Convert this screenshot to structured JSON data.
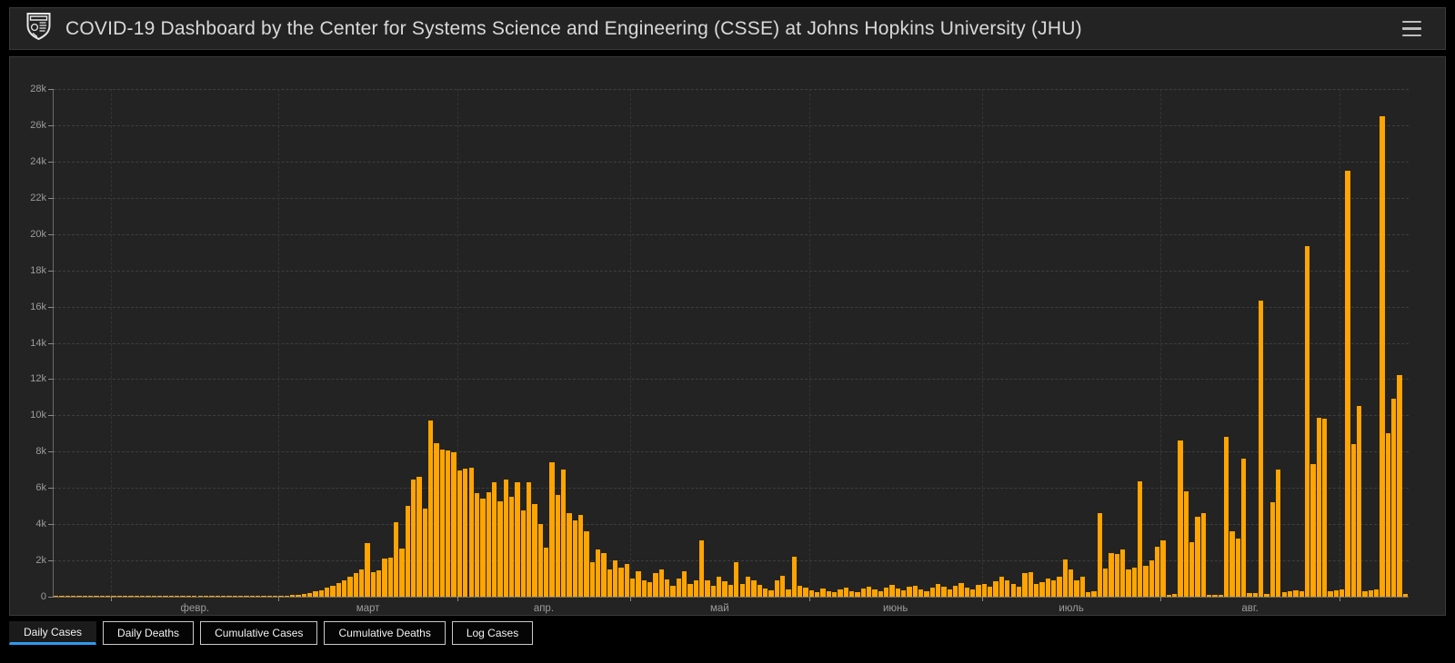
{
  "header": {
    "title": "COVID-19 Dashboard by the Center for Systems Science and Engineering (CSSE) at Johns Hopkins University (JHU)"
  },
  "colors": {
    "bar": "#ffa400",
    "tab_active_underline": "#2e9bf0",
    "panel_bg": "#232323",
    "page_bg": "#000000",
    "axis_text": "#9c9c9c"
  },
  "tabs": [
    {
      "label": "Daily Cases",
      "active": true
    },
    {
      "label": "Daily Deaths",
      "active": false
    },
    {
      "label": "Cumulative Cases",
      "active": false
    },
    {
      "label": "Cumulative Deaths",
      "active": false
    },
    {
      "label": "Log Cases",
      "active": false
    }
  ],
  "chart_data": {
    "type": "bar",
    "series_name": "Daily Cases",
    "ylim": [
      0,
      28000
    ],
    "y_tick_labels": [
      "0",
      "2k",
      "4k",
      "6k",
      "8k",
      "10k",
      "12k",
      "14k",
      "16k",
      "18k",
      "20k",
      "22k",
      "24k",
      "26k",
      "28k"
    ],
    "grid": "dashed",
    "total_days": 235,
    "months": [
      {
        "label": "февр.",
        "start": 10
      },
      {
        "label": "март",
        "start": 39
      },
      {
        "label": "апр.",
        "start": 70
      },
      {
        "label": "май",
        "start": 100
      },
      {
        "label": "июнь",
        "start": 131
      },
      {
        "label": "июль",
        "start": 161
      },
      {
        "label": "авг.",
        "start": 192
      },
      {
        "label": "",
        "start": 223
      }
    ],
    "values": [
      0,
      0,
      0,
      0,
      0,
      0,
      0,
      0,
      0,
      0,
      0,
      0,
      0,
      0,
      0,
      0,
      0,
      0,
      0,
      0,
      0,
      0,
      0,
      0,
      0,
      0,
      0,
      0,
      0,
      0,
      0,
      2,
      3,
      5,
      8,
      12,
      18,
      25,
      32,
      45,
      60,
      85,
      120,
      160,
      210,
      280,
      370,
      480,
      600,
      740,
      900,
      1100,
      1300,
      1500,
      2950,
      1350,
      1450,
      2100,
      2150,
      4100,
      2650,
      5000,
      6450,
      6600,
      4850,
      9700,
      8450,
      8100,
      8050,
      7950,
      6950,
      7050,
      7100,
      5700,
      5400,
      5750,
      6300,
      5250,
      6450,
      5500,
      6300,
      4750,
      6300,
      5100,
      4000,
      2700,
      7400,
      5600,
      7000,
      4600,
      4200,
      4500,
      3600,
      1900,
      2600,
      2400,
      1500,
      2000,
      1600,
      1800,
      1000,
      1400,
      900,
      800,
      1300,
      1500,
      950,
      600,
      1000,
      1400,
      700,
      900,
      3100,
      900,
      600,
      1100,
      850,
      650,
      1900,
      700,
      1100,
      900,
      650,
      450,
      350,
      900,
      1150,
      400,
      2200,
      600,
      500,
      350,
      250,
      450,
      300,
      250,
      400,
      500,
      300,
      250,
      450,
      550,
      400,
      300,
      500,
      650,
      450,
      350,
      550,
      600,
      400,
      300,
      500,
      700,
      550,
      400,
      600,
      750,
      500,
      400,
      650,
      700,
      550,
      850,
      1100,
      900,
      700,
      550,
      1300,
      1350,
      700,
      800,
      1000,
      900,
      1100,
      2050,
      1500,
      900,
      1100,
      250,
      300,
      4600,
      1550,
      2400,
      2350,
      2600,
      1500,
      1600,
      6350,
      1700,
      2000,
      2750,
      3100,
      100,
      150,
      8600,
      5800,
      3000,
      4400,
      4600,
      80,
      100,
      120,
      8800,
      3600,
      3200,
      7600,
      180,
      200,
      16350,
      170,
      5200,
      7000,
      250,
      300,
      350,
      300,
      19350,
      7300,
      9850,
      9800,
      300,
      350,
      400,
      23500,
      8400,
      10500,
      300,
      350,
      400,
      26500,
      9000,
      10900,
      12200,
      150
    ]
  }
}
